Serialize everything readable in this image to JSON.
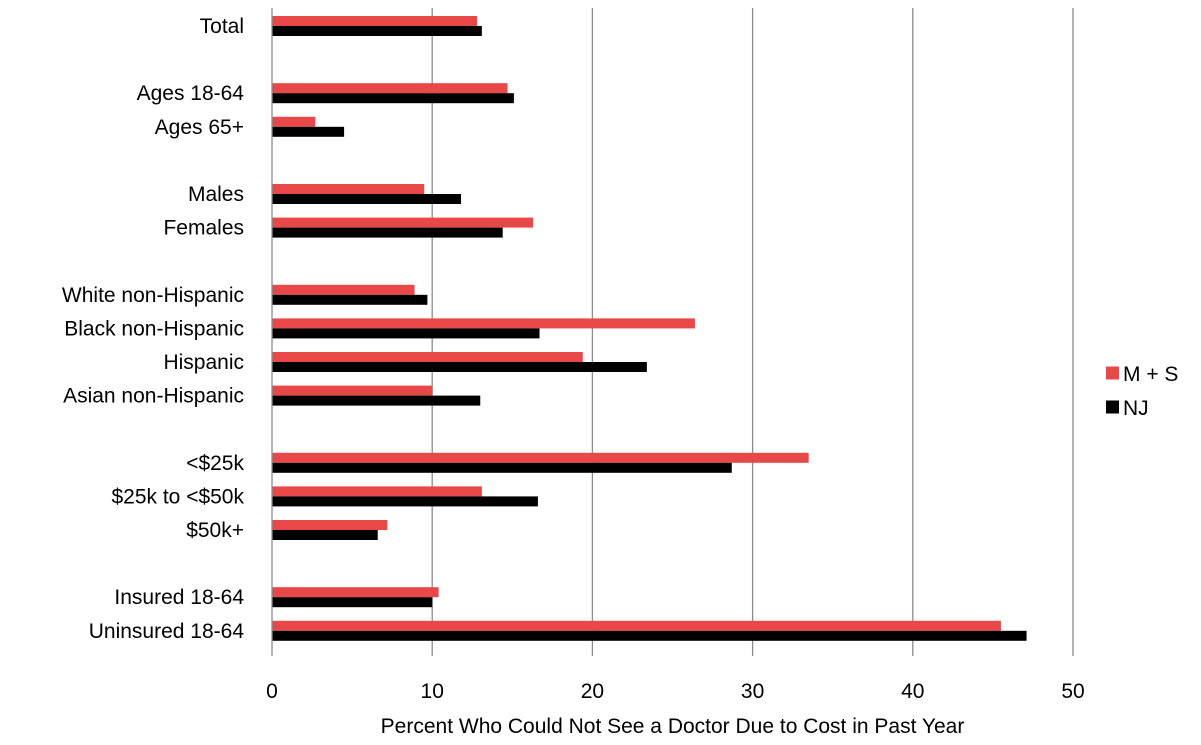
{
  "chart_data": {
    "type": "bar",
    "orientation": "horizontal",
    "xlabel": "Percent Who Could Not See a Doctor Due to Cost in Past Year",
    "xlim": [
      0,
      50
    ],
    "xticks": [
      "0",
      "10",
      "20",
      "30",
      "40",
      "50"
    ],
    "grid": "vertical",
    "legend_position": "right",
    "categories": [
      "Total",
      "",
      "Ages 18-64",
      "Ages 65+",
      "",
      "Males",
      "Females",
      "",
      "White non-Hispanic",
      "Black non-Hispanic",
      "Hispanic",
      "Asian non-Hispanic",
      "",
      "<$25k",
      "$25k to <$50k",
      "$50k+",
      "",
      "Insured 18-64",
      "Uninsured 18-64"
    ],
    "series": [
      {
        "name": "M + S",
        "color": "#e84848",
        "values": [
          12.8,
          null,
          14.7,
          2.7,
          null,
          9.5,
          16.3,
          null,
          8.9,
          26.4,
          19.4,
          10.0,
          null,
          33.5,
          13.1,
          7.2,
          null,
          10.4,
          45.5
        ]
      },
      {
        "name": "NJ",
        "color": "#000000",
        "values": [
          13.1,
          null,
          15.1,
          4.5,
          null,
          11.8,
          14.4,
          null,
          9.7,
          16.7,
          23.4,
          13.0,
          null,
          28.7,
          16.6,
          6.6,
          null,
          10.0,
          47.1
        ]
      }
    ]
  }
}
